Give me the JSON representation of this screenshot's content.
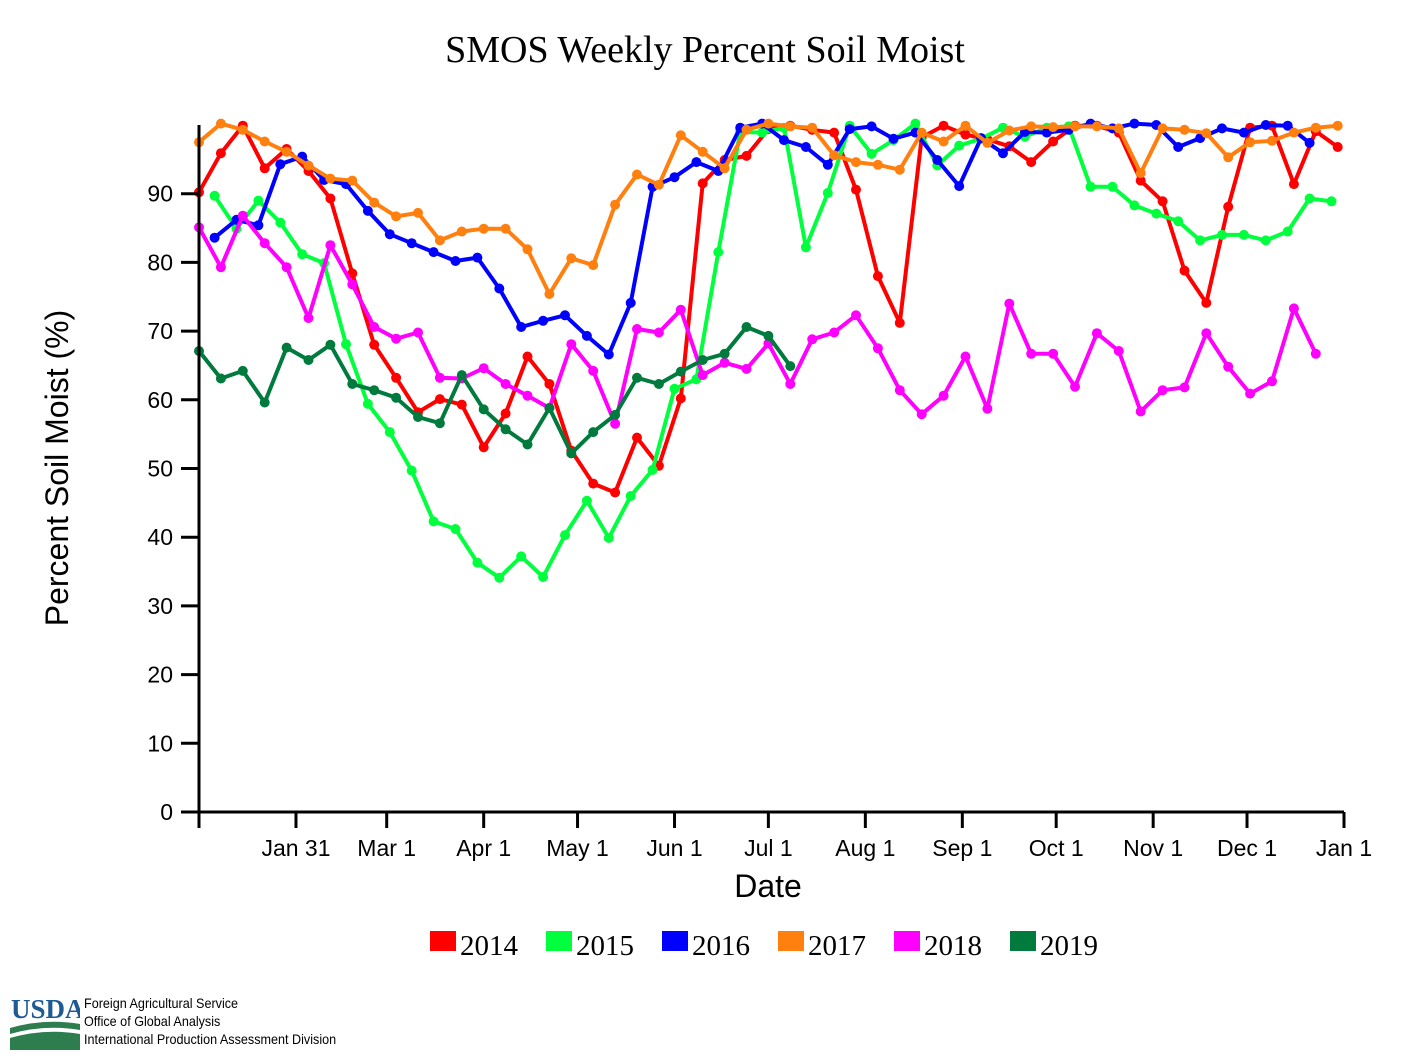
{
  "footer": {
    "agency_lines": [
      "Foreign Agricultural Service",
      "Office of Global Analysis",
      "International Production Assessment Division"
    ],
    "logo_text": "USDA",
    "logo_color": "#1f5a93",
    "logo_field_color": "#2e7d4f"
  },
  "chart_data": {
    "type": "line",
    "title": "SMOS Weekly Percent Soil Moist",
    "xlabel": "Date",
    "ylabel": "Percent Soil Moist (%)",
    "ylim": [
      0,
      100
    ],
    "yticks": [
      0,
      10,
      20,
      30,
      40,
      50,
      60,
      70,
      80,
      90
    ],
    "xlim": [
      0,
      366
    ],
    "xticks": [
      {
        "day": 31,
        "label": "Jan 31"
      },
      {
        "day": 60,
        "label": "Mar 1"
      },
      {
        "day": 91,
        "label": "Apr 1"
      },
      {
        "day": 121,
        "label": "May 1"
      },
      {
        "day": 152,
        "label": "Jun 1"
      },
      {
        "day": 182,
        "label": "Jul 1"
      },
      {
        "day": 213,
        "label": "Aug 1"
      },
      {
        "day": 244,
        "label": "Sep 1"
      },
      {
        "day": 274,
        "label": "Oct 1"
      },
      {
        "day": 305,
        "label": "Nov 1"
      },
      {
        "day": 335,
        "label": "Dec 1"
      },
      {
        "day": 366,
        "label": "Jan 1"
      }
    ],
    "grid": false,
    "legend_position": "bottom",
    "series": [
      {
        "name": "2014",
        "color": "#ff0000",
        "start_day": 0,
        "values": [
          90.2,
          95.9,
          99.9,
          93.7,
          96.5,
          93.3,
          89.3,
          78.4,
          68.0,
          63.2,
          58.2,
          60.1,
          59.3,
          53.1,
          58.0,
          66.3,
          62.3,
          52.6,
          47.8,
          46.5,
          54.5,
          50.4,
          60.2,
          91.5,
          94.9,
          95.5,
          99.4,
          99.9,
          99.3,
          98.9,
          90.6,
          78.0,
          71.2,
          98.2,
          99.9,
          98.6,
          97.9,
          96.9,
          94.6,
          97.6,
          99.9,
          99.9,
          98.9,
          91.9,
          88.9,
          78.8,
          74.1,
          88.1,
          99.6,
          99.9,
          91.4,
          99.1,
          96.8
        ]
      },
      {
        "name": "2015",
        "color": "#00ff3c",
        "start_day": 5,
        "values": [
          89.7,
          84.9,
          89.0,
          85.8,
          81.2,
          79.9,
          68.1,
          59.4,
          55.3,
          49.7,
          42.3,
          41.2,
          36.3,
          34.1,
          37.2,
          34.2,
          40.3,
          45.3,
          39.9,
          46.0,
          49.8,
          61.6,
          63.0,
          81.5,
          99.0,
          98.9,
          99.6,
          82.2,
          90.1,
          99.9,
          95.8,
          97.8,
          100.2,
          94.1,
          97.0,
          98.0,
          99.6,
          98.3,
          99.6,
          99.8,
          91.0,
          91.0,
          88.3,
          87.1,
          86.0,
          83.2,
          84.0,
          84.0,
          83.2,
          84.5,
          89.3,
          88.9
        ]
      },
      {
        "name": "2016",
        "color": "#0000ff",
        "start_day": 5,
        "values": [
          83.6,
          86.2,
          85.4,
          94.3,
          95.4,
          92.0,
          91.4,
          87.5,
          84.1,
          82.8,
          81.5,
          80.2,
          80.7,
          76.2,
          70.6,
          71.5,
          72.3,
          69.3,
          66.6,
          74.1,
          91.0,
          92.4,
          94.6,
          93.3,
          99.6,
          100.2,
          97.8,
          96.8,
          94.2,
          99.4,
          99.8,
          98.0,
          98.9,
          94.9,
          91.1,
          98.1,
          95.9,
          99.0,
          98.9,
          99.3,
          100.2,
          99.5,
          100.2,
          100.0,
          96.8,
          98.1,
          99.5,
          98.9,
          100.0,
          99.9,
          97.4
        ]
      },
      {
        "name": "2017",
        "color": "#ff7f0f",
        "start_day": 0,
        "values": [
          97.5,
          100.2,
          99.3,
          97.6,
          96.1,
          94.1,
          92.2,
          91.9,
          88.7,
          86.7,
          87.2,
          83.2,
          84.5,
          84.9,
          84.9,
          81.9,
          75.4,
          80.6,
          79.6,
          88.4,
          92.8,
          91.3,
          98.5,
          96.1,
          93.7,
          99.3,
          100.2,
          99.8,
          99.6,
          95.6,
          94.6,
          94.2,
          93.5,
          98.9,
          97.6,
          99.9,
          97.4,
          99.2,
          99.8,
          99.7,
          99.8,
          99.8,
          99.5,
          93.0,
          99.5,
          99.3,
          98.8,
          95.3,
          97.5,
          97.7,
          98.9,
          99.6,
          99.9
        ]
      },
      {
        "name": "2018",
        "color": "#ff00ff",
        "start_day": 0,
        "values": [
          85.1,
          79.3,
          86.8,
          82.8,
          79.3,
          71.9,
          82.5,
          76.8,
          70.6,
          68.9,
          69.8,
          63.2,
          63.1,
          64.6,
          62.3,
          60.6,
          58.8,
          68.1,
          64.2,
          56.5,
          70.3,
          69.8,
          73.1,
          63.6,
          65.4,
          64.5,
          68.2,
          62.3,
          68.8,
          69.8,
          72.3,
          67.5,
          61.4,
          57.9,
          60.6,
          66.3,
          58.7,
          74.0,
          66.7,
          66.7,
          61.9,
          69.7,
          67.1,
          58.3,
          61.4,
          61.8,
          69.7,
          64.8,
          60.9,
          62.7,
          73.3,
          66.7
        ]
      },
      {
        "name": "2019",
        "color": "#007a3d",
        "start_day": 0,
        "values": [
          67.1,
          63.1,
          64.2,
          59.6,
          67.6,
          65.8,
          68.0,
          62.3,
          61.4,
          60.3,
          57.5,
          56.6,
          63.6,
          58.6,
          55.7,
          53.5,
          58.8,
          52.2,
          55.3,
          57.8,
          63.2,
          62.3,
          64.1,
          65.8,
          66.7,
          70.6,
          69.3,
          64.9
        ]
      }
    ]
  }
}
